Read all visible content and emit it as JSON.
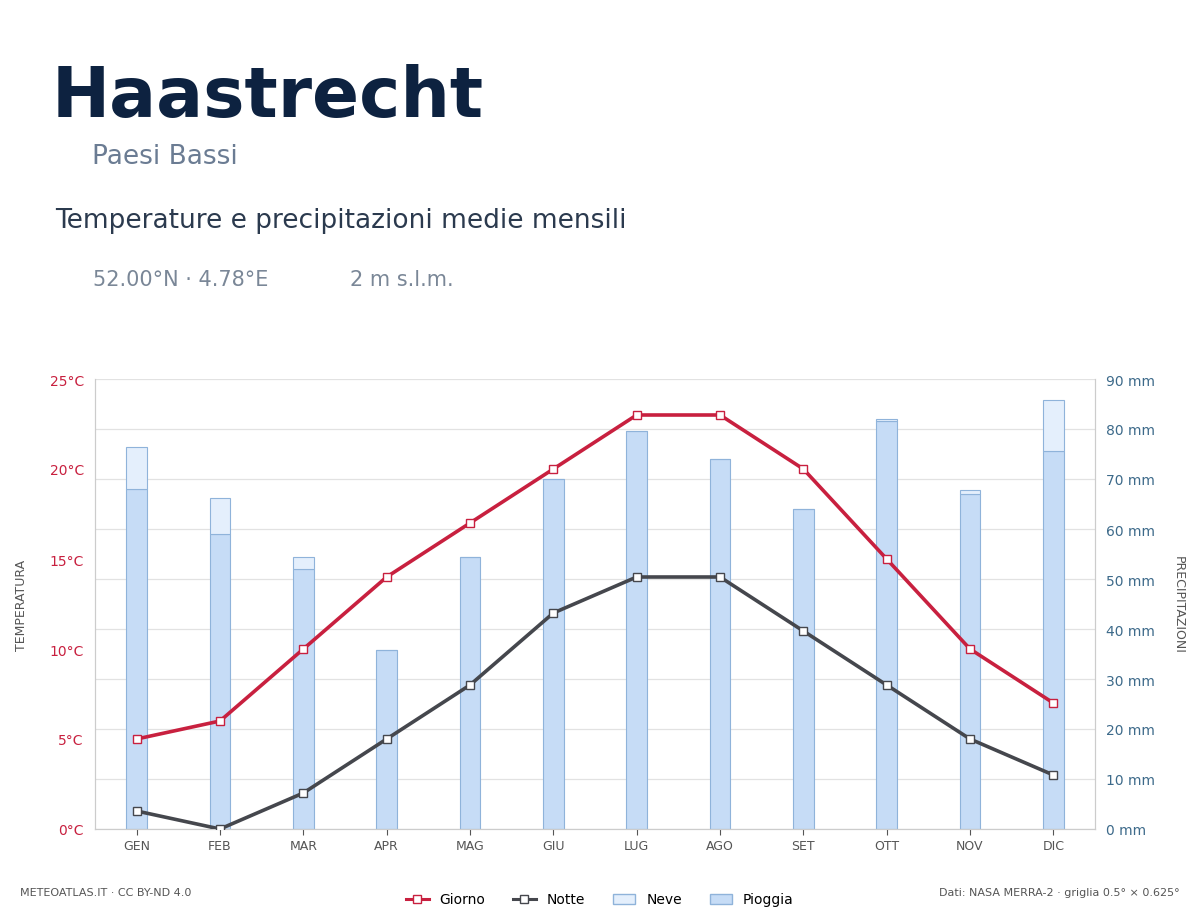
{
  "chart_data": {
    "type": "bar_line",
    "title": "Haastrecht",
    "subtitle": "Paesi Bassi",
    "annotations": [
      "Temperature e precipitazioni medie mensili",
      "52.00°N · 4.78°E",
      "2 m s.l.m.",
      "METEOATLAS.IT · CC BY-ND 4.0",
      "Dati: NASA MERRA-2 · griglia 0.5° × 0.625°"
    ],
    "y_label": "TEMPERATURA",
    "y2_label": "PRECIPITAZIONI",
    "categories": [
      "GEN",
      "FEB",
      "MAR",
      "APR",
      "MAG",
      "GIU",
      "LUG",
      "AGO",
      "SET",
      "OTT",
      "NOV",
      "DIC"
    ],
    "ylim": [
      0,
      25
    ],
    "yticks": [
      {
        "value": 0,
        "label": "0°C"
      },
      {
        "value": 5,
        "label": "5°C"
      },
      {
        "value": 10,
        "label": "10°C"
      },
      {
        "value": 15,
        "label": "15°C"
      },
      {
        "value": 20,
        "label": "20°C"
      },
      {
        "value": 25,
        "label": "25°C"
      }
    ],
    "y2lim": [
      0,
      90
    ],
    "y2ticks": [
      {
        "value": 0,
        "label": "0 mm"
      },
      {
        "value": 10,
        "label": "10 mm"
      },
      {
        "value": 20,
        "label": "20 mm"
      },
      {
        "value": 30,
        "label": "30 mm"
      },
      {
        "value": 40,
        "label": "40 mm"
      },
      {
        "value": 50,
        "label": "50 mm"
      },
      {
        "value": 60,
        "label": "60 mm"
      },
      {
        "value": 70,
        "label": "70 mm"
      },
      {
        "value": 80,
        "label": "80 mm"
      },
      {
        "value": 90,
        "label": "90 mm"
      }
    ],
    "grid": true,
    "stacked": true,
    "legend": "lower center",
    "series": [
      {
        "name": "Giorno",
        "type": "line",
        "color": "#c8203f",
        "marker": "s",
        "values": [
          5,
          6,
          10,
          14,
          17,
          20,
          23,
          23,
          20,
          15,
          10,
          7
        ]
      },
      {
        "name": "Notte",
        "type": "line",
        "color": "#45474d",
        "marker": "s",
        "values": [
          1,
          0,
          2,
          5,
          8,
          12,
          14,
          14,
          11,
          8,
          5,
          3
        ]
      },
      {
        "name": "Neve",
        "type": "bar",
        "axis": "y2",
        "color": "#e4effc",
        "values": [
          8.4,
          7.2,
          2.4,
          0,
          0,
          0,
          0,
          0,
          0,
          0.4,
          0.8,
          10.2
        ]
      },
      {
        "name": "Pioggia",
        "type": "bar",
        "axis": "y2",
        "color": "#c6dcf6",
        "values": [
          68,
          59,
          52,
          35.8,
          54.4,
          70,
          79.6,
          74,
          64,
          81.6,
          67,
          75.6
        ]
      }
    ]
  }
}
